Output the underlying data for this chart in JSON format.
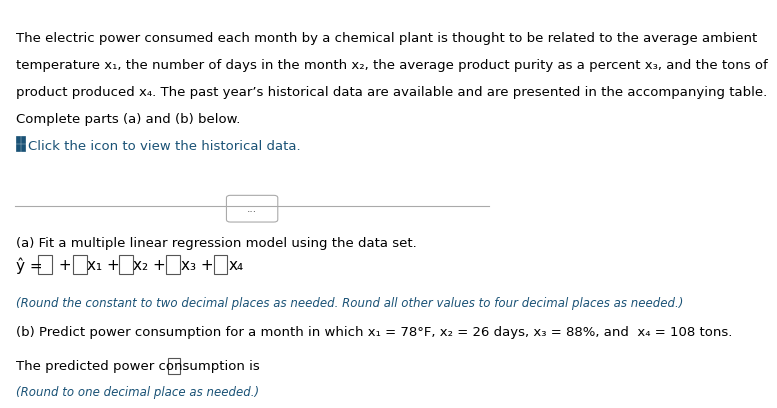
{
  "bg_color": "#ffffff",
  "top_bar_color": "#2e7d6e",
  "text_color": "#000000",
  "blue_color": "#1a5276",
  "link_color": "#1a5276",
  "body_text_line1": "The electric power consumed each month by a chemical plant is thought to be related to the average ambient",
  "body_text_line2": "temperature x₁, the number of days in the month x₂, the average product purity as a percent x₃, and the tons of",
  "body_text_line3": "product produced x₄. The past year’s historical data are available and are presented in the accompanying table.",
  "body_text_line4": "Complete parts (a) and (b) below.",
  "click_text": "Click the icon to view the historical data.",
  "part_a_label": "(a) Fit a multiple linear regression model using the data set.",
  "part_b_label": "(b) Predict power consumption for a month in which x₁ = 78°F, x₂ = 26 days, x₃ = 88%, and  x₄ = 108 tons.",
  "predicted_line": "The predicted power consumption is",
  "round_note_a": "(Round the constant to two decimal places as needed. Round all other values to four decimal places as needed.)",
  "round_note_b": "(Round to one decimal place as needed.)",
  "separator_text": "...",
  "font_size_body": 9.5,
  "font_size_equation": 11,
  "font_size_small": 8.5
}
